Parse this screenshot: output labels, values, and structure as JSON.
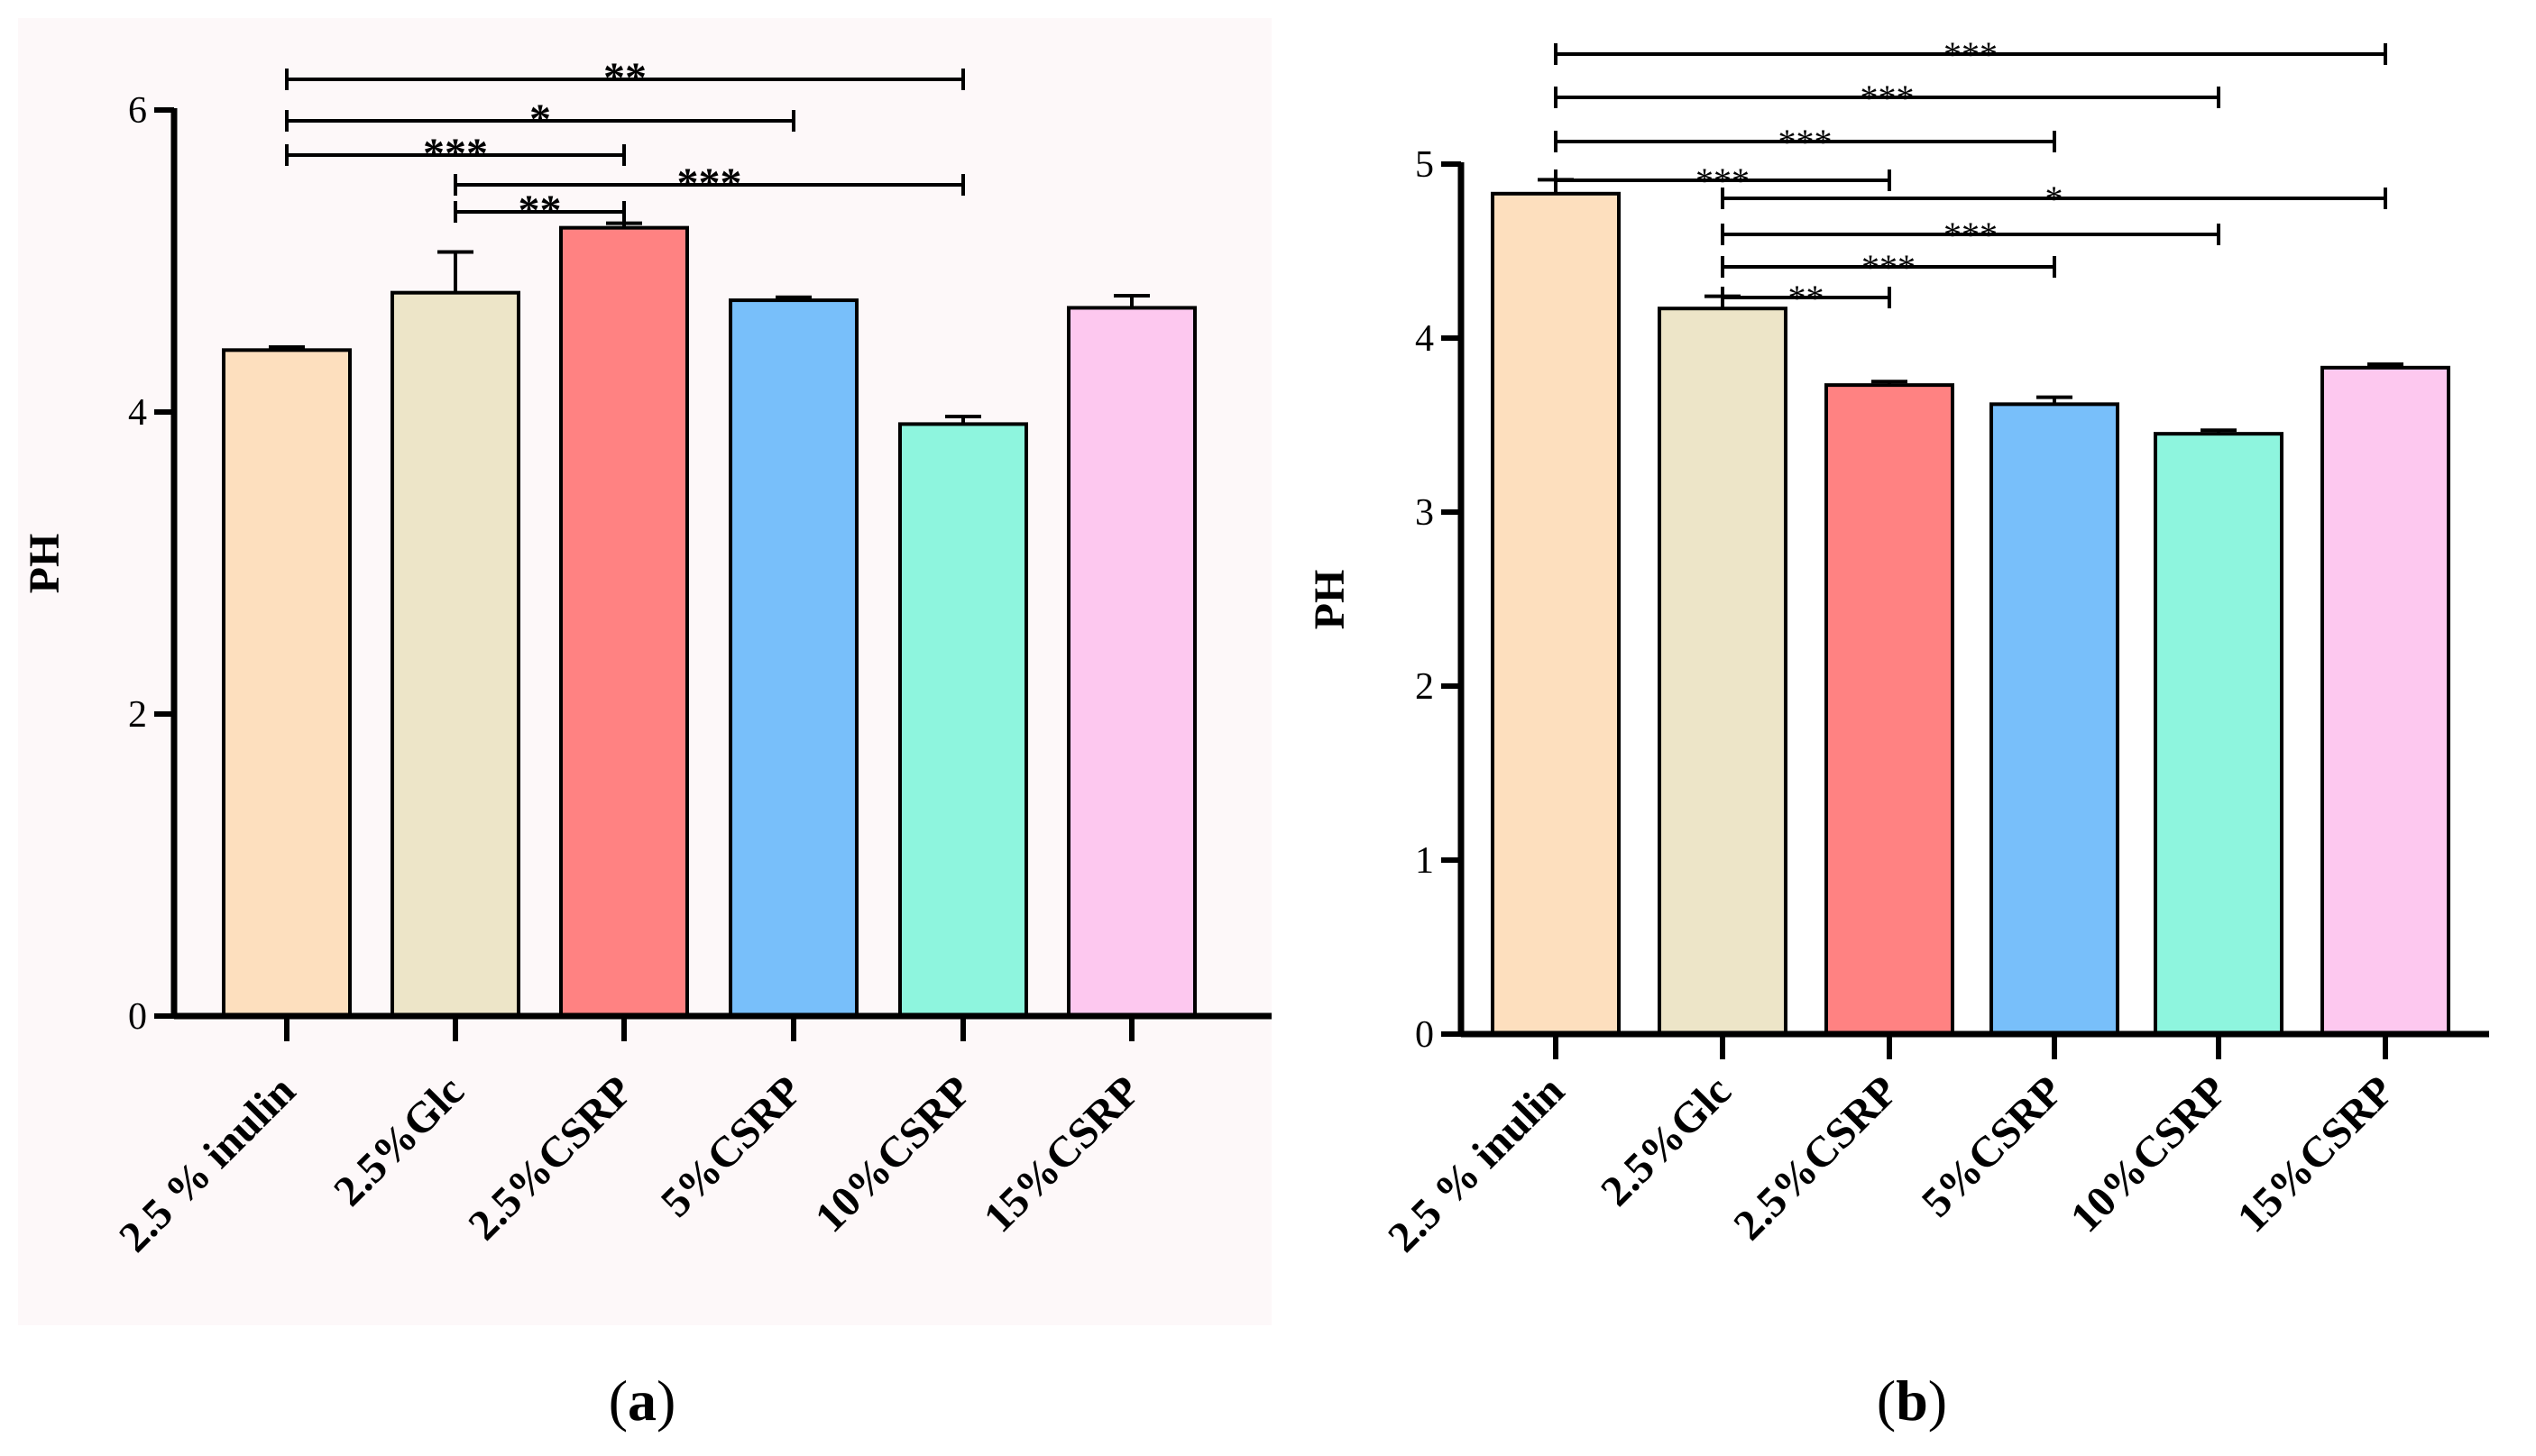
{
  "chart_data": [
    {
      "type": "bar",
      "panel_label": "a",
      "ylabel": "PH",
      "ylim": [
        0,
        6
      ],
      "yticks": [
        0,
        2,
        4,
        6
      ],
      "categories": [
        "2.5 % inulin",
        "2.5%Glc",
        "2.5%CSRP",
        "5%CSRP",
        "10%CSRP",
        "15%CSRP"
      ],
      "values": [
        4.41,
        4.79,
        5.22,
        4.74,
        3.92,
        4.69
      ],
      "errors": [
        0.02,
        0.27,
        0.03,
        0.02,
        0.05,
        0.08
      ],
      "colors": [
        "#FDDFBE",
        "#EDE5C8",
        "#FF8282",
        "#78BFFA",
        "#8EF5DE",
        "#FDC8EF"
      ],
      "background": "#FDF8F9",
      "significance": [
        {
          "from": 0,
          "to": 4,
          "label": "**"
        },
        {
          "from": 0,
          "to": 3,
          "label": "*"
        },
        {
          "from": 0,
          "to": 2,
          "label": "***"
        },
        {
          "from": 1,
          "to": 4,
          "label": "***"
        },
        {
          "from": 1,
          "to": 2,
          "label": "**"
        }
      ]
    },
    {
      "type": "bar",
      "panel_label": "b",
      "ylabel": "PH",
      "ylim": [
        0,
        5
      ],
      "yticks": [
        0,
        1,
        2,
        3,
        4,
        5
      ],
      "categories": [
        "2.5 % inulin",
        "2.5%Glc",
        "2.5%CSRP",
        "5%CSRP",
        "10%CSRP",
        "15%CSRP"
      ],
      "values": [
        4.83,
        4.17,
        3.73,
        3.62,
        3.45,
        3.83
      ],
      "errors": [
        0.08,
        0.07,
        0.02,
        0.04,
        0.02,
        0.02
      ],
      "colors": [
        "#FDDFBE",
        "#EDE5C8",
        "#FF8282",
        "#78BFFA",
        "#8EF5DE",
        "#FDC8EF"
      ],
      "background": "#FFFFFF",
      "significance": [
        {
          "from": 0,
          "to": 5,
          "label": "***"
        },
        {
          "from": 0,
          "to": 4,
          "label": "***"
        },
        {
          "from": 0,
          "to": 3,
          "label": "***"
        },
        {
          "from": 0,
          "to": 2,
          "label": "***"
        },
        {
          "from": 1,
          "to": 5,
          "label": "*"
        },
        {
          "from": 1,
          "to": 4,
          "label": "***"
        },
        {
          "from": 1,
          "to": 3,
          "label": "***"
        },
        {
          "from": 1,
          "to": 2,
          "label": "**"
        }
      ]
    }
  ]
}
